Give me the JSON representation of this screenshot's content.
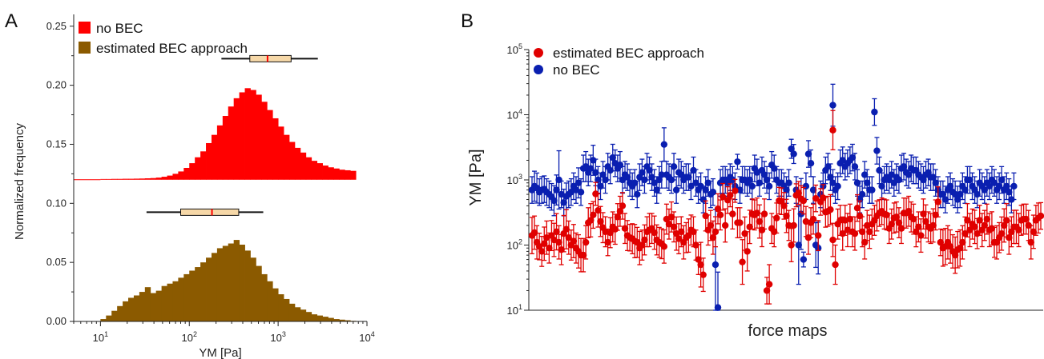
{
  "chart_data": [
    {
      "panel": "A",
      "type": "bar",
      "x_scale": "log",
      "xlabel": "YM [Pa]",
      "ylabel": "Normalized frequency",
      "xlim": [
        5,
        10000
      ],
      "ylim": [
        0,
        0.26
      ],
      "x_ticks": [
        {
          "base": "10",
          "exp": "1",
          "value": 10
        },
        {
          "base": "10",
          "exp": "2",
          "value": 100
        },
        {
          "base": "10",
          "exp": "3",
          "value": 1000
        },
        {
          "base": "10",
          "exp": "4",
          "value": 10000
        }
      ],
      "y_ticks": [
        "0.00",
        "0.05",
        "0.10",
        "0.15",
        "0.20",
        "0.25"
      ],
      "y_tick_values": [
        0.0,
        0.05,
        0.1,
        0.15,
        0.2,
        0.25
      ],
      "bin_edge_start_log": 1.0,
      "bin_width_log": 0.0625,
      "series": [
        {
          "name": "no BEC",
          "color": "#ff0000",
          "baseline": 0.12,
          "values": [
            0.1206,
            0.1206,
            0.1207,
            0.1207,
            0.1208,
            0.1208,
            0.1209,
            0.121,
            0.1212,
            0.1214,
            0.1218,
            0.1225,
            0.1235,
            0.125,
            0.127,
            0.13,
            0.134,
            0.139,
            0.144,
            0.151,
            0.158,
            0.166,
            0.174,
            0.182,
            0.189,
            0.194,
            0.1975,
            0.196,
            0.192,
            0.186,
            0.179,
            0.172,
            0.165,
            0.158,
            0.152,
            0.147,
            0.143,
            0.139,
            0.136,
            0.134,
            0.132,
            0.1305,
            0.1295,
            0.1285,
            0.128,
            0.1275
          ]
        },
        {
          "name": "estimated BEC approach",
          "color": "#8b5a00",
          "baseline": 0.0,
          "values": [
            0.002,
            0.005,
            0.009,
            0.013,
            0.017,
            0.02,
            0.022,
            0.025,
            0.029,
            0.024,
            0.026,
            0.03,
            0.032,
            0.034,
            0.037,
            0.04,
            0.043,
            0.046,
            0.05,
            0.054,
            0.058,
            0.062,
            0.064,
            0.066,
            0.069,
            0.065,
            0.06,
            0.054,
            0.047,
            0.04,
            0.034,
            0.028,
            0.023,
            0.019,
            0.015,
            0.012,
            0.01,
            0.008,
            0.006,
            0.005,
            0.004,
            0.003,
            0.002,
            0.0015,
            0.001,
            0.0005
          ]
        }
      ],
      "boxplots": [
        {
          "series": "no BEC",
          "y": 0.2225,
          "whisker_low": 230,
          "q1": 480,
          "median": 760,
          "q3": 1400,
          "whisker_high": 2800
        },
        {
          "series": "estimated BEC approach",
          "y": 0.0925,
          "whisker_low": 33,
          "q1": 80,
          "median": 180,
          "q3": 360,
          "whisker_high": 680
        }
      ],
      "box_fill": "#f6d8a8",
      "median_color": "#ff0000",
      "legend": [
        {
          "label": "no BEC",
          "color": "#ff0000"
        },
        {
          "label": "estimated BEC approach",
          "color": "#8b5a00"
        }
      ],
      "legend_position": "top-left"
    },
    {
      "panel": "B",
      "type": "scatter",
      "y_scale": "log",
      "xlabel": "force maps",
      "ylabel": "YM [Pa]",
      "ylim": [
        10,
        100000
      ],
      "y_ticks": [
        {
          "base": "10",
          "exp": "1",
          "value": 10
        },
        {
          "base": "10",
          "exp": "2",
          "value": 100
        },
        {
          "base": "10",
          "exp": "3",
          "value": 1000
        },
        {
          "base": "10",
          "exp": "4",
          "value": 10000
        },
        {
          "base": "10",
          "exp": "5",
          "value": 100000
        }
      ],
      "series": [
        {
          "name": "estimated BEC approach",
          "color": "#e00000",
          "values": [
            140,
            155,
            110,
            95,
            80,
            105,
            130,
            90,
            140,
            120,
            160,
            110,
            85,
            150,
            175,
            130,
            100,
            115,
            90,
            80,
            70,
            70,
            110,
            220,
            240,
            290,
            610,
            340,
            230,
            185,
            160,
            110,
            155,
            190,
            175,
            270,
            330,
            400,
            180,
            140,
            130,
            125,
            115,
            110,
            90,
            100,
            120,
            160,
            170,
            180,
            155,
            120,
            110,
            105,
            95,
            250,
            210,
            270,
            190,
            150,
            125,
            160,
            110,
            130,
            140,
            170,
            160,
            100,
            60,
            50,
            35,
            280,
            170,
            200,
            130,
            160,
            360,
            290,
            550,
            200,
            490,
            580,
            300,
            680,
            220,
            220,
            55,
            150,
            80,
            190,
            300,
            290,
            310,
            230,
            170,
            300,
            20,
            25,
            180,
            160,
            260,
            480,
            470,
            400,
            280,
            200,
            100,
            200,
            580,
            630,
            510,
            480,
            230,
            130,
            220,
            250,
            520,
            140,
            460,
            530,
            320,
            330,
            350,
            120,
            50,
            210,
            240,
            150,
            240,
            170,
            250,
            160,
            150,
            370,
            280,
            160,
            110,
            200,
            160,
            210,
            240,
            280,
            310,
            330,
            300,
            290,
            180,
            210,
            260,
            270,
            220,
            180,
            310,
            310,
            330,
            270,
            250,
            160,
            190,
            140,
            300,
            230,
            190,
            180,
            200,
            290,
            460,
            110,
            90,
            95,
            110,
            95,
            80,
            70,
            85,
            90,
            110,
            150,
            240,
            170,
            210,
            190,
            150,
            240,
            170,
            200,
            250,
            170,
            180,
            110,
            110,
            130,
            150,
            200,
            240,
            130,
            160,
            190,
            190,
            170,
            240,
            250,
            250,
            200,
            110,
            160,
            240,
            260,
            280
          ],
          "err_factor": [
            1.9,
            1.8,
            1.8,
            1.6,
            1.7,
            1.8,
            1.8,
            1.7,
            1.7,
            1.8,
            1.9,
            1.8,
            1.7,
            1.9,
            2.0,
            1.8,
            1.7,
            1.8,
            1.7,
            1.8,
            1.8,
            1.8,
            1.8,
            1.7,
            1.8,
            1.6,
            1.5,
            1.8,
            1.7,
            1.7,
            1.7,
            1.6,
            1.7,
            1.7,
            1.7,
            1.6,
            1.7,
            1.6,
            1.7,
            1.7,
            1.6,
            1.7,
            1.8,
            1.7,
            1.8,
            1.7,
            1.7,
            1.7,
            1.8,
            1.7,
            1.8,
            1.7,
            1.7,
            1.7,
            1.8,
            1.7,
            1.7,
            1.7,
            1.7,
            1.8,
            1.7,
            1.7,
            1.8,
            1.7,
            1.8,
            1.7,
            1.7,
            1.7,
            1.7,
            2.2,
            1.8,
            1.7,
            1.7,
            1.7,
            1.8,
            1.7,
            1.7,
            1.7,
            1.6,
            1.8,
            1.6,
            1.5,
            1.7,
            1.5,
            1.7,
            1.7,
            2.2,
            1.8,
            2.0,
            1.8,
            1.7,
            1.7,
            1.7,
            1.8,
            1.8,
            1.7,
            1.6,
            2.0,
            1.7,
            1.7,
            1.7,
            1.6,
            1.6,
            1.6,
            1.8,
            1.7,
            1.8,
            1.8,
            1.5,
            1.5,
            1.6,
            1.6,
            1.7,
            1.8,
            1.7,
            1.7,
            1.6,
            1.7,
            1.6,
            1.6,
            1.7,
            1.7,
            1.7,
            1.8,
            2.0,
            1.7,
            1.7,
            1.8,
            1.7,
            1.8,
            1.7,
            1.7,
            1.8,
            1.6,
            1.7,
            1.7,
            1.8,
            1.7,
            1.8,
            1.7,
            1.7,
            1.7,
            1.6,
            1.6,
            1.7,
            1.7,
            1.7,
            1.7,
            1.7,
            1.7,
            1.7,
            1.7,
            1.7,
            1.7,
            1.7,
            1.7,
            1.7,
            1.7,
            1.7,
            1.8,
            1.7,
            1.8,
            1.7,
            1.7,
            1.8,
            1.7,
            1.7,
            1.6,
            1.9,
            1.9,
            1.8,
            1.8,
            1.8,
            1.9,
            1.9,
            1.9,
            1.8,
            1.8,
            1.8,
            1.8,
            1.7,
            1.8,
            1.7,
            1.7,
            1.8,
            1.7,
            1.7,
            1.8,
            1.8,
            1.7,
            1.8,
            1.7,
            1.8,
            1.8,
            1.8,
            1.8,
            1.7,
            1.8,
            1.8,
            1.8,
            1.7,
            1.7,
            1.7,
            1.7,
            1.8,
            1.8,
            1.7,
            1.7
          ],
          "highlights": [
            {
              "index": 123,
              "value": 5800,
              "err_factor": 2.0
            }
          ]
        },
        {
          "name": "no BEC",
          "color": "#0a1fb0",
          "values": [
            700,
            800,
            750,
            650,
            700,
            720,
            650,
            600,
            550,
            480,
            700,
            1000,
            600,
            450,
            560,
            600,
            650,
            800,
            700,
            900,
            650,
            1500,
            1600,
            1300,
            1500,
            2000,
            1300,
            1000,
            800,
            1200,
            1000,
            1600,
            1400,
            2200,
            1800,
            1500,
            1700,
            1000,
            1200,
            1100,
            900,
            800,
            900,
            600,
            1100,
            1300,
            1000,
            1600,
            1400,
            1100,
            900,
            700,
            1000,
            1200,
            3500,
            1200,
            1100,
            1000,
            1600,
            700,
            1300,
            1200,
            1000,
            1100,
            1100,
            800,
            1400,
            900,
            700,
            800,
            500,
            700,
            900,
            600,
            650,
            50,
            11,
            900,
            1000,
            1000,
            900,
            1100,
            1000,
            800,
            1900,
            700,
            1000,
            1000,
            900,
            1000,
            800,
            1500,
            1300,
            900,
            1400,
            1200,
            1000,
            800,
            1700,
            1500,
            1000,
            900,
            900,
            800,
            700,
            900,
            3000,
            2500,
            700,
            100,
            300,
            60,
            800,
            2500,
            1800,
            700,
            100,
            90,
            600,
            800,
            1400,
            1600,
            1100,
            900,
            700,
            800,
            1800,
            2000,
            1600,
            1800,
            2000,
            2200,
            1600,
            900,
            500,
            600,
            1200,
            900,
            700,
            700,
            11000,
            2800,
            1400,
            800,
            1000,
            1100,
            1000,
            1200,
            900,
            1100,
            1000,
            1500,
            1600,
            1300,
            1200,
            1500,
            1400,
            1400,
            1200,
            1100,
            1000,
            1200,
            1300,
            1100,
            1100,
            900,
            700,
            600,
            600,
            500,
            700,
            800,
            650,
            600,
            500,
            600,
            800,
            700,
            1000,
            1000,
            800,
            700,
            600,
            900,
            800,
            700,
            900,
            800,
            1000,
            900,
            700,
            800,
            1000,
            700,
            800,
            650,
            500,
            800
          ],
          "err_factor": [
            1.6,
            1.7,
            1.7,
            1.6,
            1.6,
            1.6,
            1.6,
            1.6,
            1.6,
            1.7,
            1.7,
            2.8,
            1.6,
            1.6,
            1.6,
            1.6,
            1.6,
            1.6,
            1.6,
            1.7,
            1.6,
            1.6,
            1.7,
            1.6,
            1.6,
            1.7,
            1.6,
            1.6,
            1.6,
            1.6,
            1.6,
            1.6,
            1.6,
            1.6,
            1.6,
            1.6,
            1.6,
            1.6,
            1.6,
            1.6,
            1.6,
            1.6,
            1.6,
            1.6,
            1.6,
            1.6,
            1.6,
            1.6,
            1.6,
            1.6,
            1.6,
            1.6,
            1.6,
            1.6,
            1.8,
            1.6,
            1.6,
            1.6,
            1.6,
            1.6,
            1.6,
            1.6,
            1.6,
            1.6,
            1.6,
            1.6,
            1.6,
            1.6,
            1.6,
            1.6,
            1.6,
            1.6,
            1.6,
            1.6,
            1.6,
            7.0,
            3.5,
            1.6,
            1.6,
            1.6,
            1.6,
            1.6,
            1.6,
            1.6,
            1.3,
            1.6,
            1.6,
            1.6,
            1.6,
            1.6,
            1.6,
            1.6,
            1.6,
            1.6,
            1.6,
            1.6,
            1.6,
            1.6,
            1.6,
            1.6,
            1.6,
            1.6,
            1.6,
            1.6,
            1.6,
            1.6,
            1.4,
            1.4,
            1.6,
            4.0,
            3.5,
            1.3,
            1.6,
            1.6,
            1.6,
            1.6,
            2.2,
            2.5,
            1.6,
            1.6,
            1.6,
            1.6,
            1.6,
            1.6,
            1.6,
            1.6,
            1.6,
            1.6,
            1.6,
            1.6,
            1.6,
            1.6,
            1.6,
            1.6,
            1.6,
            1.6,
            1.6,
            1.6,
            1.6,
            1.6,
            1.6,
            1.6,
            1.6,
            1.6,
            1.6,
            1.6,
            1.6,
            1.6,
            1.6,
            1.6,
            1.6,
            1.6,
            1.6,
            1.6,
            1.6,
            1.6,
            1.6,
            1.6,
            1.6,
            1.6,
            1.6,
            1.6,
            1.6,
            1.6,
            1.6,
            1.6,
            1.6,
            1.6,
            1.6,
            1.6,
            1.6,
            1.6,
            1.6,
            1.6,
            1.6,
            1.6,
            1.6,
            1.6,
            1.6,
            1.6,
            1.6,
            1.6,
            1.6,
            1.6,
            1.6,
            1.6,
            1.6,
            1.6,
            1.6,
            1.6,
            1.6,
            1.6,
            1.6,
            1.6,
            1.6,
            1.6,
            1.6,
            1.6,
            1.6,
            1.6,
            1.6,
            1.6
          ],
          "highlights": [
            {
              "index": 123,
              "value": 14000,
              "err_factor": 2.1
            }
          ]
        }
      ],
      "legend": [
        {
          "label": "estimated BEC approach",
          "color": "#e00000"
        },
        {
          "label": "no BEC",
          "color": "#0a1fb0"
        }
      ],
      "legend_position": "top-left"
    }
  ],
  "panels": {
    "a_letter": "A",
    "b_letter": "B"
  }
}
